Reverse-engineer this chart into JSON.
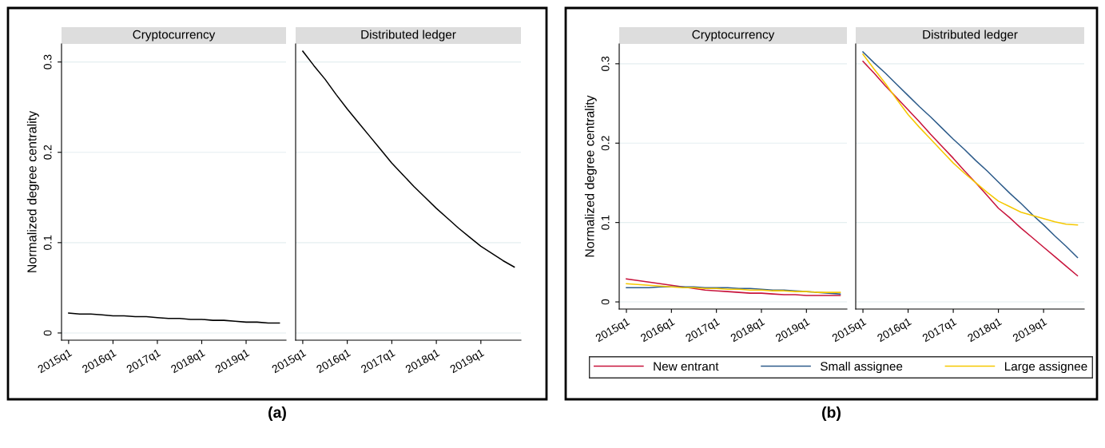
{
  "chart_data": [
    {
      "type": "line",
      "title": "Cryptocurrency",
      "ylabel": "Normalized degree centrality",
      "annotations": [
        "(a)"
      ],
      "categories": [
        "2015q1",
        null,
        null,
        null,
        "2016q1",
        null,
        null,
        null,
        "2017q1",
        null,
        null,
        null,
        "2018q1",
        null,
        null,
        null,
        "2019q1",
        null,
        null,
        null
      ],
      "ylim": [
        -0.008,
        0.32
      ],
      "yticks": [
        0,
        0.1,
        0.2,
        0.3
      ],
      "grid": "y",
      "series": [
        {
          "color": "#000000",
          "values": [
            0.022,
            0.021,
            0.021,
            0.02,
            0.019,
            0.019,
            0.018,
            0.018,
            0.017,
            0.016,
            0.016,
            0.015,
            0.015,
            0.014,
            0.014,
            0.013,
            0.012,
            0.012,
            0.011,
            0.011
          ]
        }
      ]
    },
    {
      "type": "line",
      "title": "Distributed ledger",
      "tick_labels": "x",
      "categories": [
        "2015q1",
        null,
        null,
        null,
        "2016q1",
        null,
        null,
        null,
        "2017q1",
        null,
        null,
        null,
        "2018q1",
        null,
        null,
        null,
        "2019q1",
        null,
        null,
        null
      ],
      "ylim": [
        -0.008,
        0.32
      ],
      "yticks": [
        0,
        0.1,
        0.2,
        0.3
      ],
      "grid": "y",
      "series": [
        {
          "color": "#000000",
          "values": [
            0.312,
            0.296,
            0.281,
            0.264,
            0.248,
            0.233,
            0.218,
            0.203,
            0.188,
            0.175,
            0.162,
            0.15,
            0.138,
            0.127,
            0.116,
            0.106,
            0.096,
            0.088,
            0.08,
            0.073
          ]
        }
      ]
    },
    {
      "type": "line",
      "title": "Cryptocurrency",
      "ylabel": "Normalized degree centrality",
      "annotations": [
        "(b)"
      ],
      "categories": [
        "2015q1",
        null,
        null,
        null,
        "2016q1",
        null,
        null,
        null,
        "2017q1",
        null,
        null,
        null,
        "2018q1",
        null,
        null,
        null,
        "2019q1",
        null,
        null,
        null
      ],
      "ylim": [
        -0.009,
        0.325
      ],
      "yticks": [
        0,
        0.1,
        0.2,
        0.3
      ],
      "grid": "y",
      "series": [
        {
          "color": "#c8143c",
          "values": [
            0.029,
            0.027,
            0.025,
            0.023,
            0.021,
            0.019,
            0.017,
            0.015,
            0.014,
            0.013,
            0.012,
            0.011,
            0.011,
            0.01,
            0.009,
            0.009,
            0.008,
            0.008,
            0.008,
            0.008
          ]
        },
        {
          "color": "#2d5b8a",
          "values": [
            0.018,
            0.018,
            0.018,
            0.019,
            0.019,
            0.019,
            0.019,
            0.018,
            0.018,
            0.018,
            0.017,
            0.017,
            0.016,
            0.015,
            0.015,
            0.014,
            0.013,
            0.012,
            0.011,
            0.01
          ]
        },
        {
          "color": "#f5c800",
          "values": [
            0.023,
            0.022,
            0.021,
            0.02,
            0.019,
            0.018,
            0.018,
            0.017,
            0.017,
            0.016,
            0.016,
            0.015,
            0.015,
            0.014,
            0.014,
            0.013,
            0.013,
            0.012,
            0.012,
            0.012
          ]
        }
      ]
    },
    {
      "type": "line",
      "title": "Distributed ledger",
      "tick_labels": "x",
      "legend": "bottom",
      "categories": [
        "2015q1",
        null,
        null,
        null,
        "2016q1",
        null,
        null,
        null,
        "2017q1",
        null,
        null,
        null,
        "2018q1",
        null,
        null,
        null,
        "2019q1",
        null,
        null,
        null
      ],
      "ylim": [
        -0.009,
        0.325
      ],
      "yticks": [
        0,
        0.1,
        0.2,
        0.3
      ],
      "grid": "y",
      "series": [
        {
          "name": "New entrant",
          "color": "#c8143c",
          "values": [
            0.303,
            0.288,
            0.272,
            0.257,
            0.242,
            0.227,
            0.211,
            0.196,
            0.181,
            0.165,
            0.15,
            0.134,
            0.118,
            0.106,
            0.093,
            0.081,
            0.069,
            0.057,
            0.045,
            0.033
          ]
        },
        {
          "name": "Small assignee",
          "color": "#2d5b8a",
          "values": [
            0.315,
            0.301,
            0.288,
            0.274,
            0.26,
            0.246,
            0.233,
            0.219,
            0.205,
            0.192,
            0.178,
            0.165,
            0.151,
            0.137,
            0.124,
            0.11,
            0.097,
            0.083,
            0.07,
            0.056
          ]
        },
        {
          "name": "Large assignee",
          "color": "#f5c800",
          "values": [
            0.312,
            0.293,
            0.275,
            0.255,
            0.236,
            0.22,
            0.205,
            0.19,
            0.175,
            0.162,
            0.15,
            0.138,
            0.127,
            0.12,
            0.113,
            0.109,
            0.105,
            0.101,
            0.098,
            0.097
          ]
        }
      ]
    }
  ]
}
